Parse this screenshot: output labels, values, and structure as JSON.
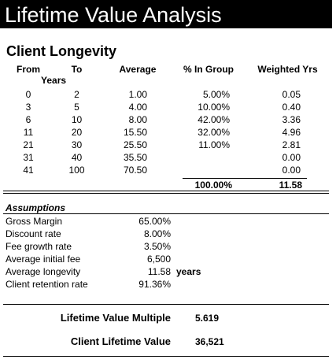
{
  "title": "Lifetime Value Analysis",
  "section": "Client Longevity",
  "table": {
    "headers": [
      "From",
      "To",
      "Average",
      "% In Group",
      "Weighted Yrs"
    ],
    "subheader": "Years",
    "rows": [
      {
        "from": "0",
        "to": "2",
        "average": "1.00",
        "pct": "5.00%",
        "weighted": "0.05"
      },
      {
        "from": "3",
        "to": "5",
        "average": "4.00",
        "pct": "10.00%",
        "weighted": "0.40"
      },
      {
        "from": "6",
        "to": "10",
        "average": "8.00",
        "pct": "42.00%",
        "weighted": "3.36"
      },
      {
        "from": "11",
        "to": "20",
        "average": "15.50",
        "pct": "32.00%",
        "weighted": "4.96"
      },
      {
        "from": "21",
        "to": "30",
        "average": "25.50",
        "pct": "11.00%",
        "weighted": "2.81"
      },
      {
        "from": "31",
        "to": "40",
        "average": "35.50",
        "weighted": "0.00"
      },
      {
        "from": "41",
        "to": "100",
        "average": "70.50",
        "weighted": "0.00"
      }
    ],
    "totals": {
      "pct": "100.00%",
      "weighted": "11.58"
    }
  },
  "assumptions": {
    "title": "Assumptions",
    "rows": [
      {
        "label": "Gross Margin",
        "value": "65.00%"
      },
      {
        "label": "Discount rate",
        "value": "8.00%"
      },
      {
        "label": "Fee growth rate",
        "value": "3.50%"
      },
      {
        "label": "Average initial fee",
        "value": "6,500"
      },
      {
        "label": "Average longevity",
        "value": "11.58",
        "unit": "years"
      },
      {
        "label": "Client retention rate",
        "value": "91.36%"
      }
    ]
  },
  "results": [
    {
      "label": "Lifetime Value Multiple",
      "value": "5.619"
    },
    {
      "label": "Client Lifetime Value",
      "value": "36,521"
    }
  ]
}
